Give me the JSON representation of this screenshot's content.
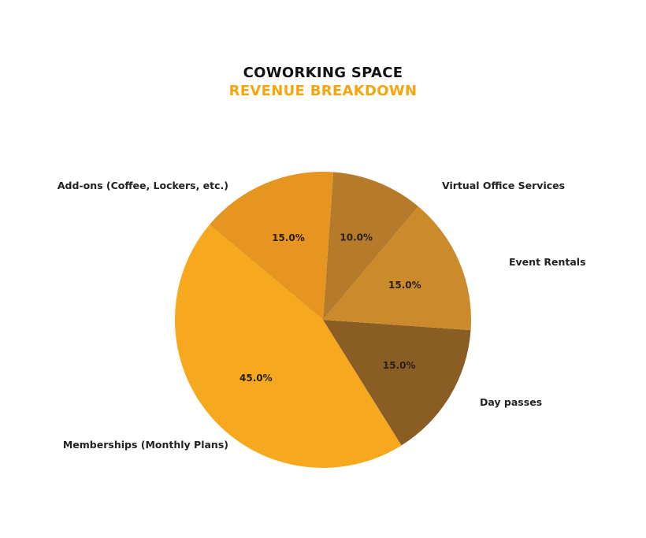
{
  "chart_data": {
    "type": "pie",
    "title": "COWORKING SPACE",
    "subtitle": "REVENUE BREAKDOWN",
    "title_colors": {
      "title": "#111111",
      "subtitle": "#F5A60F"
    },
    "start_angle_deg": 140,
    "direction": "counterclockwise",
    "slices": [
      {
        "label": "Memberships (Monthly Plans)",
        "value": 45.0,
        "pct_label": "45.0%",
        "color": "#F6A81E"
      },
      {
        "label": "Day passes",
        "value": 15.0,
        "pct_label": "15.0%",
        "color": "#8A5D25"
      },
      {
        "label": "Event Rentals",
        "value": 15.0,
        "pct_label": "15.0%",
        "color": "#CB8B2C"
      },
      {
        "label": "Virtual Office Services",
        "value": 10.0,
        "pct_label": "10.0%",
        "color": "#B57B2A"
      },
      {
        "label": "Add-ons (Coffee, Lockers, etc.)",
        "value": 15.0,
        "pct_label": "15.0%",
        "color": "#E69520"
      }
    ]
  }
}
